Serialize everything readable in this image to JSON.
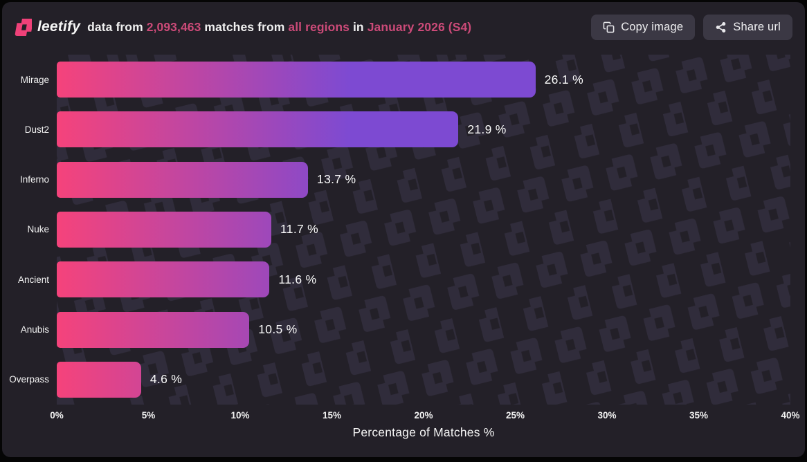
{
  "header": {
    "brand": "leetify",
    "sentence_segments": [
      {
        "text": "data from ",
        "highlight": false
      },
      {
        "text": "2,093,463",
        "highlight": true
      },
      {
        "text": " matches from ",
        "highlight": false
      },
      {
        "text": "all regions",
        "highlight": true
      },
      {
        "text": " in ",
        "highlight": false
      },
      {
        "text": "January 2026 (S4)",
        "highlight": true
      }
    ],
    "buttons": [
      {
        "label": "Copy image",
        "icon": "copy-icon"
      },
      {
        "label": "Share url",
        "icon": "share-icon"
      }
    ]
  },
  "chart_data": {
    "type": "bar",
    "orientation": "horizontal",
    "categories": [
      "Mirage",
      "Dust2",
      "Inferno",
      "Nuke",
      "Ancient",
      "Anubis",
      "Overpass"
    ],
    "values": [
      26.1,
      21.9,
      13.7,
      11.7,
      11.6,
      10.5,
      4.6
    ],
    "value_labels": [
      "26.1 %",
      "21.9 %",
      "13.7 %",
      "11.7 %",
      "11.6 %",
      "10.5 %",
      "4.6 %"
    ],
    "title": "",
    "xlabel": "Percentage of Matches %",
    "ylabel": "",
    "xlim": [
      0,
      40
    ],
    "xticks": [
      "0%",
      "5%",
      "10%",
      "15%",
      "20%",
      "25%",
      "30%",
      "35%",
      "40%"
    ],
    "grid": false,
    "legend": false,
    "bar_gradient": {
      "start": "#f5437b",
      "end": "#7d4ad2",
      "span_percent": 16
    }
  },
  "colors": {
    "card-bg": "#232028",
    "accent-pink": "#cb4a78",
    "button-bg": "#3b3844",
    "bar-pink": "#f5437b",
    "bar-purple": "#7d4ad2",
    "pattern-mark": "#302c3b",
    "logo-pink": "#ef4179"
  }
}
